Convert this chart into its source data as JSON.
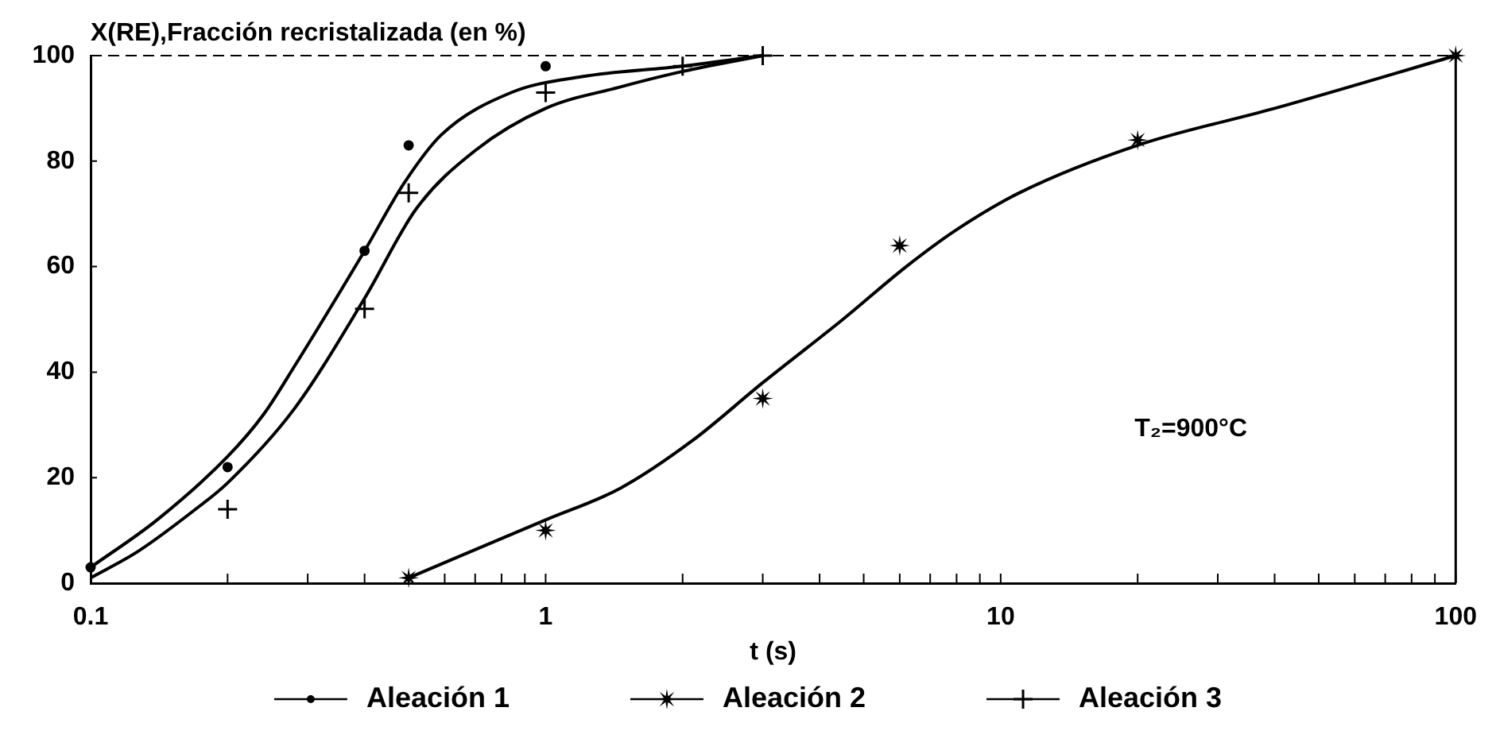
{
  "chart_data": {
    "type": "scatter",
    "ylabel": "X(RE),Fracción recristalizada (en %)",
    "xlabel": "t (s)",
    "annotations": [
      "T₂=900°C"
    ],
    "series": [
      {
        "name": "Aleación 1",
        "marker": "circle",
        "color": "#000000",
        "x": [
          0.1,
          0.2,
          0.4,
          0.5,
          1
        ],
        "values": [
          3,
          22,
          63,
          83,
          98
        ]
      },
      {
        "name": "Aleación 2",
        "marker": "star",
        "color": "#000000",
        "x": [
          0.5,
          1,
          3,
          6,
          20,
          100
        ],
        "values": [
          1,
          10,
          35,
          64,
          84,
          100
        ]
      },
      {
        "name": "Aleación 3",
        "marker": "cross",
        "color": "#000000",
        "x": [
          0.2,
          0.4,
          0.5,
          1,
          2,
          3
        ],
        "values": [
          14,
          52,
          74,
          93,
          98,
          100
        ]
      },
      {
        "type": "line",
        "marker": "none",
        "color": "#000000",
        "x": [
          0.1,
          0.14,
          0.2,
          0.24,
          0.28,
          0.4,
          0.49,
          0.59,
          0.84,
          1.2,
          2,
          3
        ],
        "values": [
          3,
          12,
          24,
          32,
          41,
          63,
          76,
          85,
          93,
          96,
          98,
          100
        ]
      },
      {
        "type": "line",
        "marker": "none",
        "color": "#000000",
        "x": [
          0.5,
          1,
          1.46,
          2.1,
          3,
          4.5,
          6.2,
          8,
          11,
          20,
          40,
          100
        ],
        "values": [
          1,
          12,
          18,
          27,
          38,
          50,
          60,
          67,
          74,
          83,
          90,
          100
        ]
      },
      {
        "type": "line",
        "marker": "none",
        "color": "#000000",
        "x": [
          0.1,
          0.127,
          0.17,
          0.2,
          0.28,
          0.4,
          0.52,
          0.7,
          1,
          1.45,
          2,
          3
        ],
        "values": [
          1,
          6,
          14,
          19,
          33,
          54,
          71,
          82,
          90,
          94,
          97,
          100
        ]
      }
    ],
    "xlim": [
      0.1,
      100
    ],
    "xticks": [
      0.1,
      {
        "value": 0.2,
        "label": null
      },
      {
        "value": 0.3,
        "label": null
      },
      {
        "value": 0.4,
        "label": null
      },
      {
        "value": 0.5,
        "label": null
      },
      {
        "value": 0.6,
        "label": null
      },
      {
        "value": 0.7,
        "label": null
      },
      {
        "value": 0.8,
        "label": null
      },
      {
        "value": 0.9,
        "label": null
      },
      1,
      {
        "value": 2,
        "label": null
      },
      {
        "value": 3,
        "label": null
      },
      {
        "value": 4,
        "label": null
      },
      {
        "value": 5,
        "label": null
      },
      {
        "value": 6,
        "label": null
      },
      {
        "value": 7,
        "label": null
      },
      {
        "value": 8,
        "label": null
      },
      {
        "value": 9,
        "label": null
      },
      10,
      {
        "value": 20,
        "label": null
      },
      {
        "value": 30,
        "label": null
      },
      {
        "value": 40,
        "label": null
      },
      {
        "value": 50,
        "label": null
      },
      {
        "value": 60,
        "label": null
      },
      {
        "value": 70,
        "label": null
      },
      {
        "value": 80,
        "label": null
      },
      {
        "value": 90,
        "label": null
      },
      100
    ],
    "ylim": [
      0,
      100
    ],
    "yticks": [
      0,
      20,
      40,
      60,
      80,
      100
    ],
    "log": "x",
    "grid": false,
    "legend": "bottom"
  }
}
